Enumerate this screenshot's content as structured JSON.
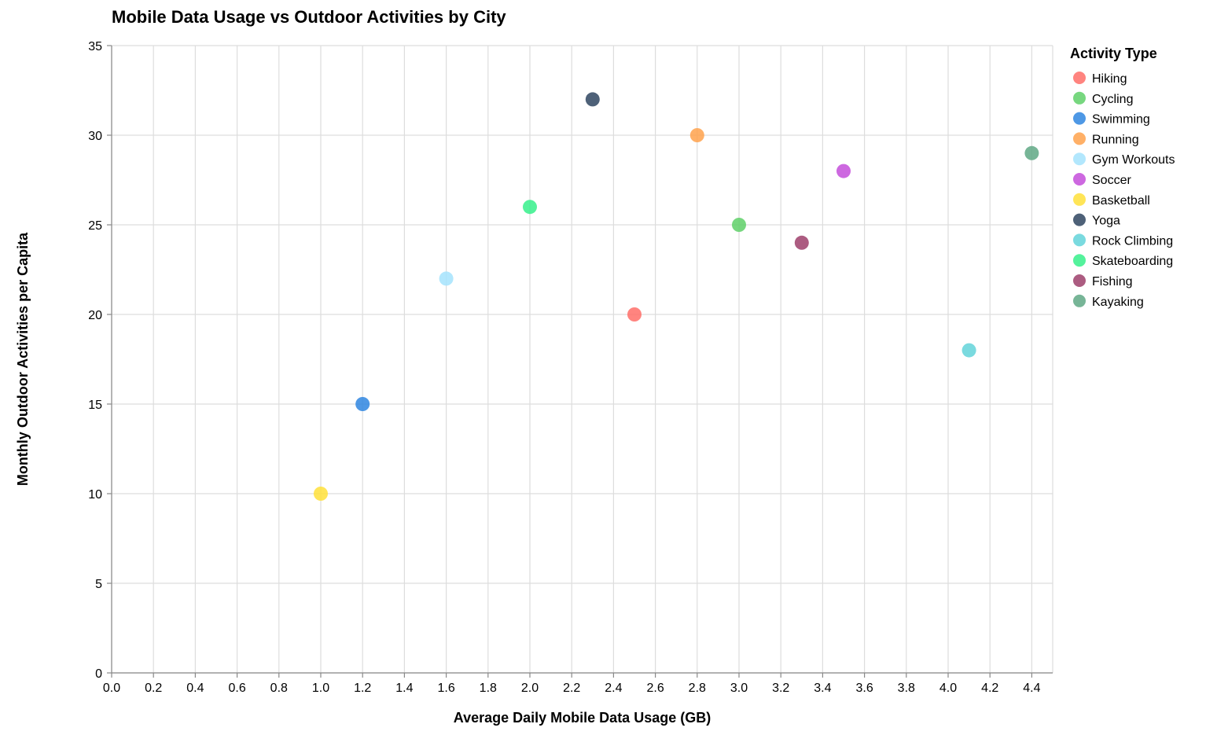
{
  "chart_data": {
    "type": "scatter",
    "title": "Mobile Data Usage vs Outdoor Activities by City",
    "xlabel": "Average Daily Mobile Data Usage (GB)",
    "ylabel": "Monthly Outdoor Activities per Capita",
    "xlim": [
      0,
      4.5
    ],
    "ylim": [
      0,
      35
    ],
    "x_ticks": [
      "0.0",
      "0.2",
      "0.4",
      "0.6",
      "0.8",
      "1.0",
      "1.2",
      "1.4",
      "1.6",
      "1.8",
      "2.0",
      "2.2",
      "2.4",
      "2.6",
      "2.8",
      "3.0",
      "3.2",
      "3.4",
      "3.6",
      "3.8",
      "4.0",
      "4.2",
      "4.4"
    ],
    "y_ticks": [
      "0",
      "5",
      "10",
      "15",
      "20",
      "25",
      "30",
      "35"
    ],
    "grid": true,
    "legend": {
      "title": "Activity Type",
      "placement": "right"
    },
    "series": [
      {
        "name": "Hiking",
        "color": "#ff6f69",
        "x": 2.5,
        "y": 20
      },
      {
        "name": "Cycling",
        "color": "#5fd068",
        "x": 3.0,
        "y": 25
      },
      {
        "name": "Swimming",
        "color": "#2f86e0",
        "x": 1.2,
        "y": 15
      },
      {
        "name": "Running",
        "color": "#ffa24c",
        "x": 2.8,
        "y": 30
      },
      {
        "name": "Gym Workouts",
        "color": "#a5e3fd",
        "x": 1.6,
        "y": 22
      },
      {
        "name": "Soccer",
        "color": "#c44ddb",
        "x": 3.5,
        "y": 28
      },
      {
        "name": "Basketball",
        "color": "#ffe03a",
        "x": 1.0,
        "y": 10
      },
      {
        "name": "Yoga",
        "color": "#2f4560",
        "x": 2.3,
        "y": 32
      },
      {
        "name": "Rock Climbing",
        "color": "#63d3d9",
        "x": 4.1,
        "y": 18
      },
      {
        "name": "Skateboarding",
        "color": "#36f08b",
        "x": 2.0,
        "y": 26
      },
      {
        "name": "Fishing",
        "color": "#9e3f6b",
        "x": 3.3,
        "y": 24
      },
      {
        "name": "Kayaking",
        "color": "#5fa885",
        "x": 4.4,
        "y": 29
      }
    ]
  }
}
